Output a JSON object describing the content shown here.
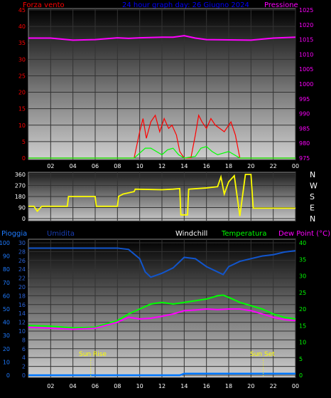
{
  "colors": {
    "background": "#000000",
    "wind": "#ff0000",
    "pressure": "#ff00ff",
    "direction": "#ffff00",
    "humidity": "#1155cc",
    "temperature": "#00ff00",
    "dewpoint": "#ff00ff",
    "rain": "#0077ff",
    "windchill": "#ffffff",
    "grid": "#333333",
    "axis_text": "#ffffff"
  },
  "header": {
    "wind_label": "Forza vento",
    "title": "24 hour graph day: 26 Giugno 2024",
    "pressure_label": "Pressione"
  },
  "legend2": {
    "rain_label": "Pioggia",
    "humidity_label": "Umidita",
    "windchill_label": "Windchill",
    "temperature_label": "Temperatura",
    "dewpoint_label": "Dew Point (°C)"
  },
  "annotations": {
    "sunrise": "Sun Rise",
    "sunset": "Sun Set"
  },
  "compass": [
    "N",
    "W",
    "S",
    "E",
    "N"
  ],
  "x_ticks": [
    "02",
    "04",
    "06",
    "08",
    "10",
    "12",
    "14",
    "16",
    "18",
    "20",
    "22",
    "00"
  ],
  "chart_data": [
    {
      "type": "line",
      "title": "24 hour graph day: 26 Giugno 2024",
      "x_range": [
        0,
        24
      ],
      "y_left_ticks": [
        0,
        5,
        10,
        15,
        20,
        25,
        30,
        35,
        40,
        45
      ],
      "y_left_range": [
        0,
        45
      ],
      "y_right_ticks": [
        975,
        980,
        985,
        990,
        995,
        1000,
        1005,
        1010,
        1015,
        1020,
        1025
      ],
      "y_right_range": [
        975,
        1025
      ],
      "series": [
        {
          "name": "Pressione",
          "axis": "right",
          "x": [
            0,
            2,
            4,
            6,
            8,
            9,
            10,
            12,
            13,
            14,
            15,
            16,
            18,
            20,
            22,
            24
          ],
          "y": [
            1015.5,
            1015.5,
            1014.8,
            1015.0,
            1015.6,
            1015.4,
            1015.6,
            1015.8,
            1015.8,
            1016.3,
            1015.5,
            1015.0,
            1014.9,
            1014.8,
            1015.5,
            1015.8
          ]
        },
        {
          "name": "Forza vento",
          "axis": "left",
          "x": [
            0,
            9.5,
            10,
            10.3,
            10.6,
            11,
            11.4,
            11.8,
            12.2,
            12.6,
            12.9,
            13.3,
            13.6,
            14,
            14.6,
            15,
            15.3,
            15.6,
            16,
            16.4,
            16.8,
            17.2,
            17.6,
            18.2,
            18.6,
            19,
            24
          ],
          "y": [
            0,
            0,
            8,
            12,
            6,
            11,
            13,
            8,
            12,
            9,
            10,
            7,
            2,
            0,
            0,
            7,
            13,
            11,
            9,
            12,
            10,
            9,
            8,
            11,
            7,
            0,
            0
          ]
        },
        {
          "name": "Raffica",
          "axis": "left",
          "x": [
            0,
            9.5,
            10,
            10.5,
            11,
            11.5,
            12,
            12.5,
            13,
            13.5,
            14,
            15,
            15.5,
            16,
            16.5,
            17,
            17.5,
            18,
            18.5,
            19,
            24
          ],
          "y": [
            0,
            0,
            1.5,
            3,
            3,
            2,
            1,
            2.5,
            3,
            1,
            0,
            0.5,
            3,
            3.5,
            2,
            1,
            1.5,
            2,
            1,
            0,
            0
          ]
        }
      ]
    },
    {
      "type": "line",
      "title": "",
      "x_range": [
        0,
        24
      ],
      "y_ticks": [
        0,
        90,
        180,
        270,
        360
      ],
      "y_range": [
        0,
        360
      ],
      "series": [
        {
          "name": "Direzione",
          "x": [
            0,
            0.5,
            0.8,
            1.2,
            3.5,
            3.6,
            6,
            6.1,
            8,
            8.1,
            8.5,
            9.5,
            9.6,
            12,
            13,
            13.6,
            13.7,
            14.3,
            14.4,
            16,
            17,
            17.3,
            17.6,
            18,
            18.5,
            19,
            19.5,
            20,
            20.2,
            24
          ],
          "y": [
            100,
            100,
            60,
            100,
            100,
            180,
            180,
            100,
            100,
            180,
            200,
            220,
            240,
            235,
            240,
            245,
            30,
            30,
            240,
            250,
            260,
            340,
            200,
            300,
            350,
            20,
            360,
            360,
            85,
            85
          ]
        }
      ]
    },
    {
      "type": "line",
      "title": "",
      "x_range": [
        0,
        24
      ],
      "y_left_ticks": [
        0,
        10,
        20,
        30,
        40,
        50,
        60,
        70,
        80,
        90,
        100
      ],
      "y_left2_ticks": [
        0,
        2,
        4,
        6,
        8,
        10,
        12,
        14,
        16,
        18,
        20,
        22,
        24,
        26,
        28,
        30
      ],
      "y_right_ticks": [
        0,
        5,
        10,
        15,
        20,
        25,
        30,
        35,
        40
      ],
      "y_left_range": [
        0,
        100
      ],
      "y_right_range": [
        0,
        40
      ],
      "series": [
        {
          "name": "Umidita",
          "axis": "left",
          "x": [
            0,
            2,
            4,
            6,
            8,
            9,
            10,
            10.5,
            11,
            12,
            13,
            14,
            15,
            16,
            17,
            17.5,
            18,
            19,
            20,
            21,
            22,
            23,
            24
          ],
          "y": [
            96,
            96,
            96,
            96,
            96,
            95,
            88,
            78,
            74,
            77,
            81,
            89,
            88,
            82,
            78,
            76,
            82,
            86,
            88,
            90,
            91,
            93,
            94
          ]
        },
        {
          "name": "Temperatura",
          "axis": "right",
          "x": [
            0,
            2,
            4,
            6,
            8,
            9,
            10,
            11,
            12,
            13,
            14,
            15,
            16,
            17,
            17.5,
            18,
            19,
            20,
            21,
            22,
            23,
            24
          ],
          "y": [
            15,
            14.8,
            14.3,
            14.5,
            16.5,
            18.5,
            20,
            21.5,
            22,
            21.5,
            22,
            22.5,
            23,
            24,
            24.2,
            23.5,
            22,
            21,
            20,
            18.5,
            17.5,
            17
          ]
        },
        {
          "name": "Dew Point",
          "axis": "right",
          "x": [
            0,
            2,
            4,
            6,
            8,
            9,
            10,
            11,
            12,
            13,
            14,
            15,
            16,
            17,
            18,
            19,
            20,
            21,
            22,
            23,
            24
          ],
          "y": [
            14.5,
            14.2,
            13.9,
            14.2,
            16,
            17.5,
            17,
            17.2,
            17.8,
            18.5,
            19.5,
            19.7,
            20,
            19.8,
            20,
            20,
            19.5,
            18.5,
            17.5,
            16.8,
            16.5
          ]
        },
        {
          "name": "Pioggia",
          "axis": "left",
          "x": [
            0,
            13.6,
            14,
            24
          ],
          "y": [
            0,
            0,
            1.2,
            1.2
          ]
        }
      ],
      "sunrise_hour": 5.6,
      "sunset_hour": 21.1
    }
  ]
}
